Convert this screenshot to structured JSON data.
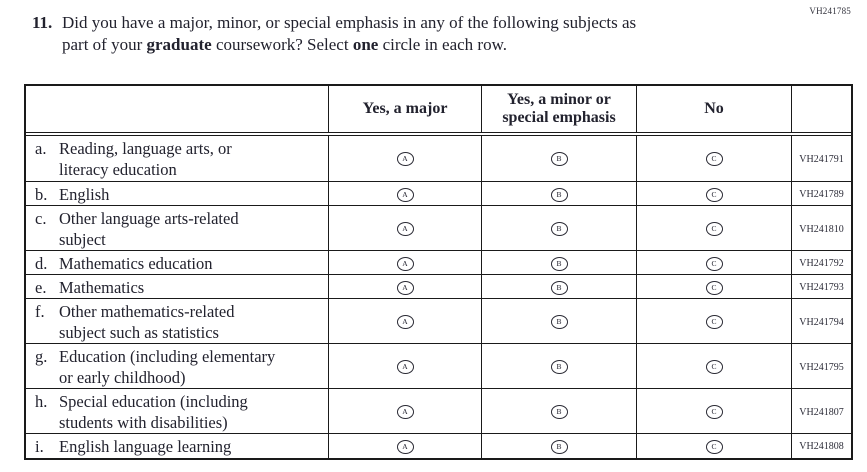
{
  "page": {
    "top_right_code": "VH241785"
  },
  "question": {
    "number": "11.",
    "line1": "Did you have a major, minor, or special emphasis in any of the following subjects as",
    "line2_pre": "part of your ",
    "line2_bold1": "graduate",
    "line2_mid": " coursework? Select ",
    "line2_bold2": "one",
    "line2_post": " circle in each row."
  },
  "table": {
    "headers": {
      "col_major": "Yes, a major",
      "col_minor_line1": "Yes, a minor or",
      "col_minor_line2": "special emphasis",
      "col_no": "No"
    },
    "options": [
      "A",
      "B",
      "C"
    ],
    "rows": [
      {
        "letter": "a.",
        "line1": "Reading, language arts, or",
        "line2": "literacy education",
        "code": "VH241791"
      },
      {
        "letter": "b.",
        "line1": "English",
        "line2": "",
        "code": "VH241789"
      },
      {
        "letter": "c.",
        "line1": "Other language arts-related",
        "line2": "subject",
        "code": "VH241810"
      },
      {
        "letter": "d.",
        "line1": "Mathematics education",
        "line2": "",
        "code": "VH241792"
      },
      {
        "letter": "e.",
        "line1": "Mathematics",
        "line2": "",
        "code": "VH241793"
      },
      {
        "letter": "f.",
        "line1": "Other mathematics-related",
        "line2": "subject such as statistics",
        "code": "VH241794"
      },
      {
        "letter": "g.",
        "line1": "Education (including elementary",
        "line2": "or early childhood)",
        "code": "VH241795"
      },
      {
        "letter": "h.",
        "line1": "Special education (including",
        "line2": "students with disabilities)",
        "code": "VH241807"
      },
      {
        "letter": "i.",
        "line1": "English language learning",
        "line2": "",
        "code": "VH241808"
      }
    ]
  },
  "colors": {
    "ink": "#22222e",
    "border": "#1a1a1a"
  }
}
